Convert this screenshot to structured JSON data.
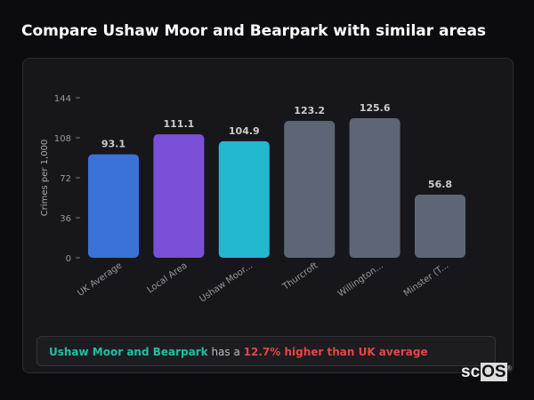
{
  "title": "Compare Ushaw Moor and Bearpark with similar areas",
  "chart_data": {
    "type": "bar",
    "ylabel": "Crimes per 1,000",
    "ylim": [
      0,
      144
    ],
    "yticks": [
      0,
      36,
      72,
      108,
      144
    ],
    "categories": [
      "UK Average",
      "Local Area",
      "Ushaw Moor...",
      "Thurcroft",
      "Willington...",
      "Minster (T..."
    ],
    "values": [
      93.1,
      111.1,
      104.9,
      123.2,
      125.6,
      56.8
    ],
    "colors": [
      "#3a72d8",
      "#7b50d6",
      "#22b8d0",
      "#5c6676",
      "#5c6676",
      "#5c6676"
    ],
    "grid": false
  },
  "summary": {
    "area": "Ushaw Moor and Bearpark",
    "middle": " has a ",
    "comparison": "12.7% higher than UK average"
  },
  "logo": {
    "text_plain": "sc",
    "text_box": "OS",
    "mark": "®"
  }
}
